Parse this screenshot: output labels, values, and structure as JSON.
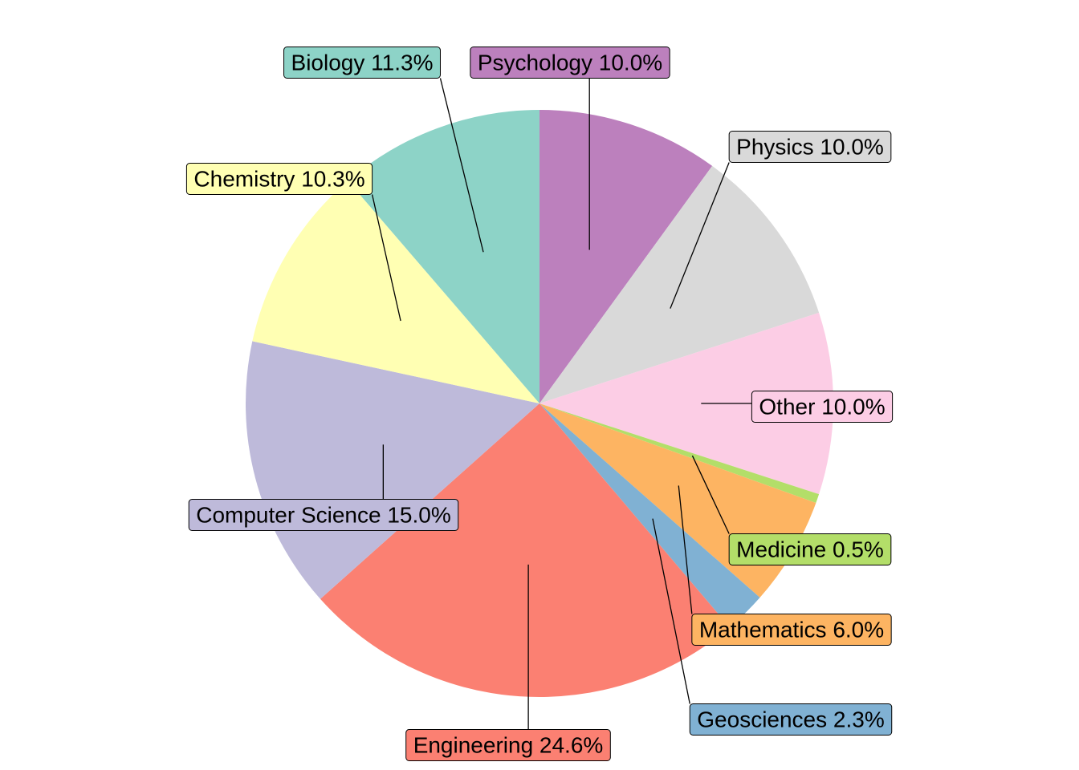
{
  "chart_data": {
    "type": "pie",
    "start_angle_deg": 0,
    "direction": "clockwise",
    "slices": [
      {
        "category": "Psychology",
        "value": 10.0,
        "label": "Psychology 10.0%",
        "color": "#BC80BD"
      },
      {
        "category": "Physics",
        "value": 10.0,
        "label": "Physics 10.0%",
        "color": "#D9D9D9"
      },
      {
        "category": "Other",
        "value": 10.0,
        "label": "Other 10.0%",
        "color": "#FCCDE5"
      },
      {
        "category": "Medicine",
        "value": 0.5,
        "label": "Medicine 0.5%",
        "color": "#B3DE69"
      },
      {
        "category": "Mathematics",
        "value": 6.0,
        "label": "Mathematics 6.0%",
        "color": "#FDB462"
      },
      {
        "category": "Geosciences",
        "value": 2.3,
        "label": "Geosciences 2.3%",
        "color": "#80B1D3"
      },
      {
        "category": "Engineering",
        "value": 24.6,
        "label": "Engineering 24.6%",
        "color": "#FB8072"
      },
      {
        "category": "Computer Science",
        "value": 15.0,
        "label": "Computer Science 15.0%",
        "color": "#BEBADA"
      },
      {
        "category": "Chemistry",
        "value": 10.3,
        "label": "Chemistry 10.3%",
        "color": "#FFFFB3"
      },
      {
        "category": "Biology",
        "value": 11.3,
        "label": "Biology 11.3%",
        "color": "#8DD3C7"
      }
    ]
  }
}
